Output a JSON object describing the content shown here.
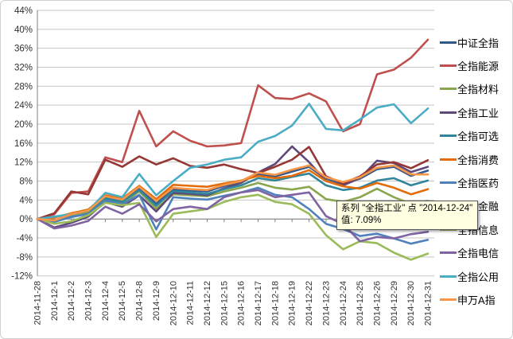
{
  "chart_data": {
    "type": "line",
    "title": "",
    "xlabel": "",
    "ylabel": "",
    "ylim": [
      -12,
      44
    ],
    "ytick_step": 4,
    "ytick_suffix": "%",
    "grid": true,
    "legend_position": "right",
    "x": [
      "2014-11-28",
      "2014-12-1",
      "2014-12-2",
      "2014-12-3",
      "2014-12-4",
      "2014-12-5",
      "2014-12-8",
      "2014-12-9",
      "2014-12-10",
      "2014-12-11",
      "2014-12-12",
      "2014-12-15",
      "2014-12-16",
      "2014-12-17",
      "2014-12-18",
      "2014-12-19",
      "2014-12-22",
      "2014-12-23",
      "2014-12-24",
      "2014-12-25",
      "2014-12-26",
      "2014-12-29",
      "2014-12-30",
      "2014-12-31"
    ],
    "series": [
      {
        "name": "中证全指",
        "color": "#31588F",
        "values": [
          0,
          -0.5,
          0.8,
          1.5,
          4.5,
          3.8,
          6.5,
          3.2,
          6.3,
          6.0,
          5.8,
          7.0,
          7.8,
          9.5,
          9.0,
          10.0,
          11.0,
          8.5,
          7.5,
          8.5,
          10.5,
          11.0,
          9.1,
          10.2
        ]
      },
      {
        "name": "全指能源",
        "color": "#C0504D",
        "values": [
          0,
          1.0,
          5.5,
          5.8,
          13.0,
          12.0,
          22.8,
          15.3,
          18.5,
          16.5,
          15.3,
          15.5,
          16.0,
          28.2,
          25.5,
          25.3,
          26.5,
          24.8,
          18.5,
          20.0,
          30.5,
          31.5,
          34.0,
          37.8
        ]
      },
      {
        "name": "全指材料",
        "color": "#89A54E",
        "values": [
          0,
          -0.4,
          0.6,
          1.3,
          4.2,
          3.3,
          5.8,
          2.2,
          5.2,
          5.0,
          4.8,
          5.8,
          6.6,
          7.6,
          6.6,
          6.2,
          6.8,
          4.2,
          3.6,
          4.6,
          6.4,
          4.6,
          3.2,
          3.8
        ]
      },
      {
        "name": "全指工业",
        "color": "#5F497A",
        "values": [
          0,
          -1.8,
          -0.8,
          0.5,
          3.6,
          2.6,
          5.0,
          1.6,
          5.5,
          5.3,
          5.0,
          6.5,
          7.6,
          9.8,
          11.6,
          15.3,
          12.0,
          8.0,
          7.09,
          8.6,
          12.3,
          11.8,
          9.9,
          11.0
        ]
      },
      {
        "name": "全指可选",
        "color": "#31859B",
        "values": [
          0,
          -0.6,
          0.4,
          1.1,
          4.3,
          3.6,
          6.1,
          2.8,
          5.9,
          5.6,
          5.3,
          6.3,
          7.1,
          8.6,
          8.1,
          8.9,
          9.6,
          7.1,
          6.1,
          6.6,
          8.1,
          8.6,
          7.1,
          8.1
        ]
      },
      {
        "name": "全指消费",
        "color": "#E36C09",
        "values": [
          0,
          0.3,
          1.2,
          2.0,
          5.0,
          4.3,
          7.0,
          4.2,
          7.2,
          7.0,
          6.8,
          7.5,
          8.1,
          9.1,
          8.6,
          9.1,
          10.3,
          8.0,
          6.9,
          6.4,
          7.6,
          6.6,
          5.2,
          6.3
        ]
      },
      {
        "name": "全指医药",
        "color": "#4F81BD",
        "values": [
          0,
          -0.6,
          0.5,
          1.0,
          3.9,
          3.1,
          5.1,
          -2.2,
          4.6,
          4.3,
          4.1,
          4.9,
          5.6,
          6.6,
          5.1,
          4.6,
          2.1,
          -1.0,
          -2.1,
          -3.6,
          -3.1,
          -4.1,
          -5.2,
          -4.4
        ]
      },
      {
        "name": "全指金融",
        "color": "#953734",
        "values": [
          0,
          1.2,
          5.8,
          5.2,
          12.5,
          11.0,
          13.2,
          11.5,
          12.8,
          11.2,
          10.8,
          11.5,
          10.5,
          9.7,
          11.0,
          12.5,
          15.2,
          9.0,
          7.5,
          9.0,
          11.5,
          12.0,
          10.7,
          12.4
        ]
      },
      {
        "name": "全指信息",
        "color": "#9BBB59",
        "values": [
          0,
          -1.0,
          -0.5,
          0.8,
          3.4,
          2.9,
          3.4,
          -3.8,
          1.1,
          1.6,
          2.1,
          3.6,
          4.6,
          5.1,
          3.6,
          3.1,
          1.1,
          -3.4,
          -6.4,
          -4.7,
          -5.1,
          -7.1,
          -8.6,
          -7.3
        ]
      },
      {
        "name": "全指电信",
        "color": "#8064A2",
        "values": [
          0,
          -2.0,
          -1.4,
          -0.4,
          2.6,
          1.1,
          3.1,
          -0.5,
          2.1,
          2.6,
          2.1,
          4.6,
          5.6,
          6.1,
          4.6,
          5.1,
          5.6,
          0.6,
          -1.1,
          -4.7,
          -3.8,
          -4.1,
          -3.2,
          -2.7
        ]
      },
      {
        "name": "全指公用",
        "color": "#4BACC6",
        "values": [
          0,
          0.5,
          1.0,
          1.8,
          5.5,
          4.6,
          9.5,
          5.0,
          8.0,
          10.8,
          11.5,
          12.5,
          13.0,
          16.3,
          17.5,
          19.7,
          24.3,
          19.0,
          18.7,
          21.0,
          23.5,
          24.2,
          20.2,
          23.3
        ]
      },
      {
        "name": "申万A指",
        "color": "#F79646",
        "values": [
          0,
          -0.3,
          1.0,
          1.8,
          4.8,
          4.1,
          6.8,
          3.8,
          6.6,
          6.3,
          6.1,
          7.2,
          8.0,
          9.8,
          9.3,
          10.4,
          11.3,
          8.8,
          7.8,
          8.8,
          10.8,
          11.3,
          9.4,
          9.4
        ]
      }
    ]
  },
  "tooltip": {
    "line1": "系列 \"全指工业\" 点 \"2014-12-24\"",
    "line2": "值: 7.09%",
    "series": "全指工业",
    "point": "2014-12-24",
    "value": "7.09%"
  }
}
